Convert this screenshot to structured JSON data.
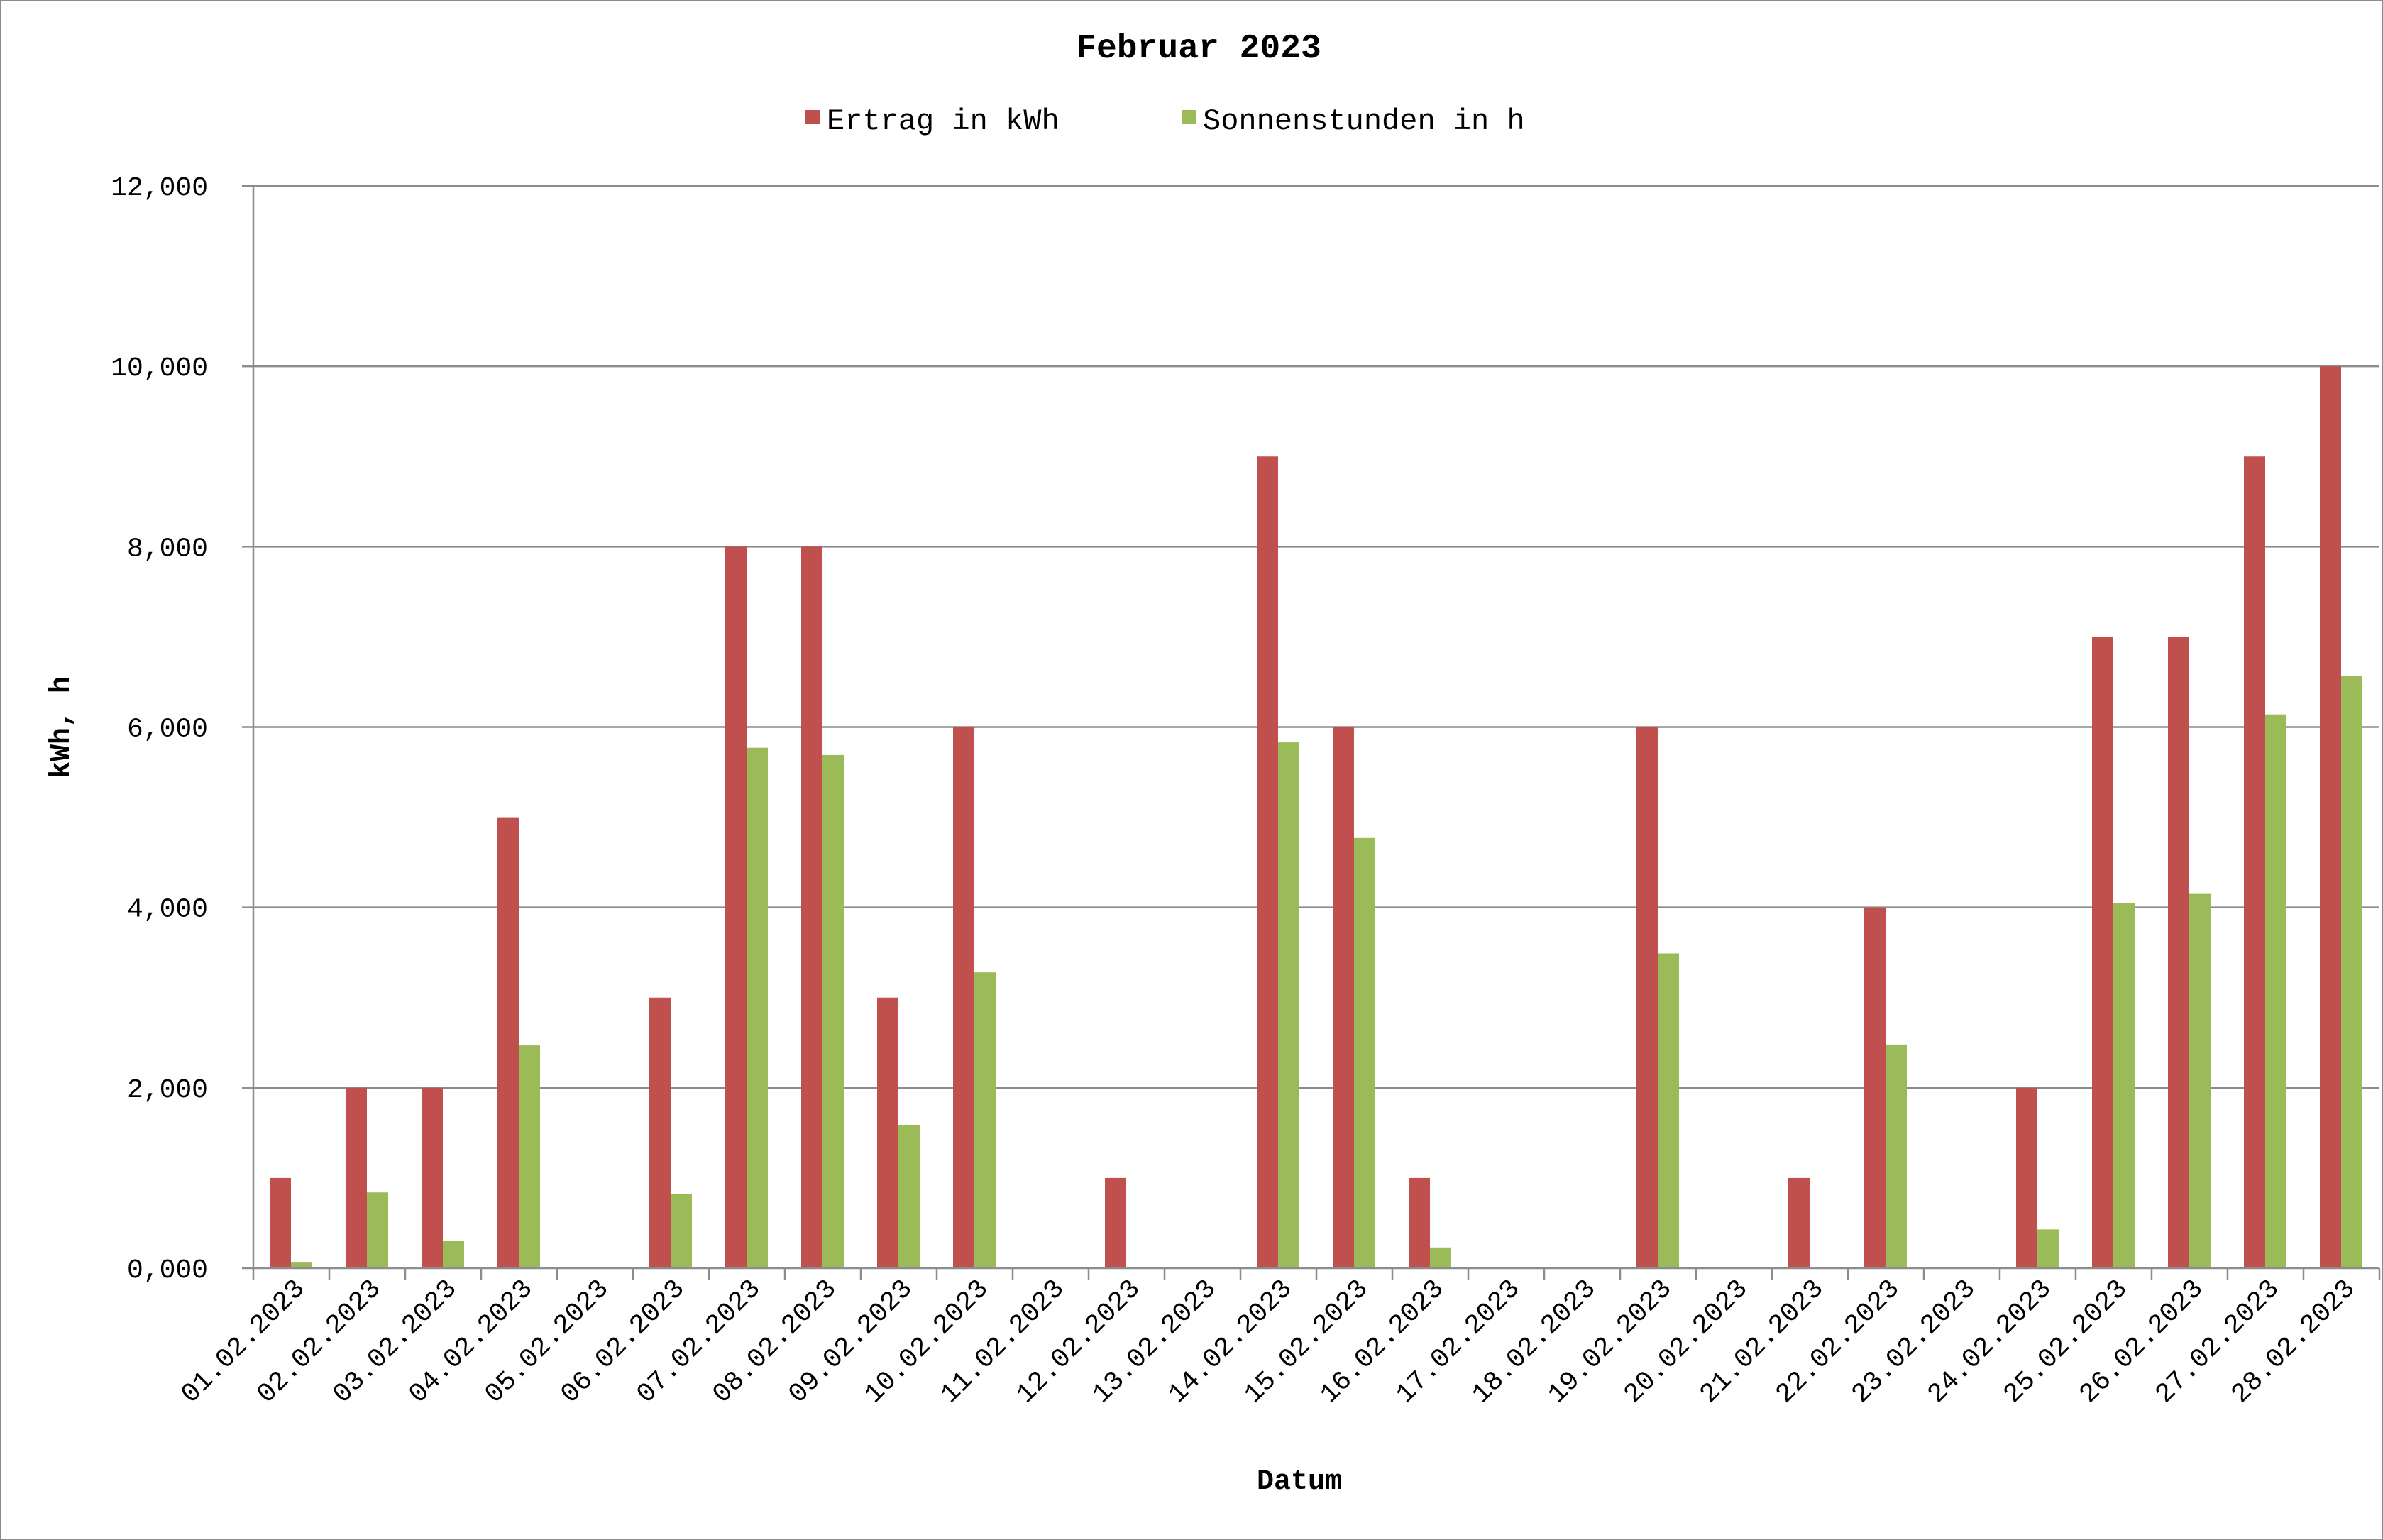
{
  "chart_data": {
    "type": "bar",
    "title": "Februar 2023",
    "xlabel": "Datum",
    "ylabel": "kWh, h",
    "ylim": [
      0,
      12
    ],
    "yticks": [
      "0,000",
      "2,000",
      "4,000",
      "6,000",
      "8,000",
      "10,000",
      "12,000"
    ],
    "grid": true,
    "legend_position": "top",
    "categories": [
      "01.02.2023",
      "02.02.2023",
      "03.02.2023",
      "04.02.2023",
      "05.02.2023",
      "06.02.2023",
      "07.02.2023",
      "08.02.2023",
      "09.02.2023",
      "10.02.2023",
      "11.02.2023",
      "12.02.2023",
      "13.02.2023",
      "14.02.2023",
      "15.02.2023",
      "16.02.2023",
      "17.02.2023",
      "18.02.2023",
      "19.02.2023",
      "20.02.2023",
      "21.02.2023",
      "22.02.2023",
      "23.02.2023",
      "24.02.2023",
      "25.02.2023",
      "26.02.2023",
      "27.02.2023",
      "28.02.2023"
    ],
    "series": [
      {
        "name": "Ertrag in kWh",
        "color": "#c0504d",
        "values": [
          1,
          2,
          2,
          5,
          0,
          3,
          8,
          8,
          3,
          6,
          0,
          1,
          0,
          9,
          6,
          1,
          0,
          0,
          6,
          0,
          1,
          4,
          0,
          2,
          7,
          7,
          9,
          10
        ]
      },
      {
        "name": "Sonnenstunden in h",
        "color": "#9bbb59",
        "values": [
          0.07,
          0.84,
          0.3,
          2.47,
          0,
          0.82,
          5.77,
          5.69,
          1.59,
          3.28,
          0,
          0,
          0,
          5.83,
          4.77,
          0.23,
          0,
          0,
          3.49,
          0,
          0,
          2.48,
          0,
          0.43,
          4.05,
          4.15,
          6.14,
          6.57
        ]
      }
    ]
  }
}
